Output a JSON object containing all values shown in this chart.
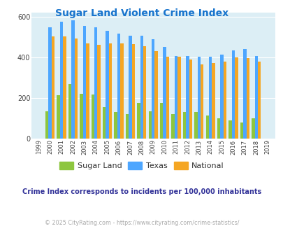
{
  "title": "Sugar Land Violent Crime Index",
  "title_color": "#1874cd",
  "subtitle": "Crime Index corresponds to incidents per 100,000 inhabitants",
  "subtitle_color": "#333399",
  "footer": "© 2025 CityRating.com - https://www.cityrating.com/crime-statistics/",
  "footer_color": "#aaaaaa",
  "years": [
    1999,
    2000,
    2001,
    2002,
    2003,
    2004,
    2005,
    2006,
    2007,
    2008,
    2009,
    2010,
    2011,
    2012,
    2013,
    2014,
    2015,
    2016,
    2017,
    2018,
    2019
  ],
  "sugar_land": [
    0,
    135,
    215,
    270,
    220,
    218,
    155,
    130,
    120,
    175,
    135,
    175,
    120,
    130,
    130,
    115,
    100,
    90,
    80,
    100,
    0
  ],
  "texas": [
    0,
    548,
    575,
    583,
    555,
    548,
    530,
    518,
    508,
    508,
    490,
    453,
    408,
    408,
    402,
    402,
    412,
    435,
    442,
    408,
    0
  ],
  "national": [
    0,
    502,
    502,
    494,
    470,
    463,
    468,
    470,
    464,
    455,
    430,
    404,
    404,
    390,
    365,
    372,
    380,
    400,
    396,
    380,
    0
  ],
  "sugar_land_color": "#8dc63f",
  "texas_color": "#4da6ff",
  "national_color": "#f5a623",
  "bg_color": "#dceef5",
  "ylim": [
    0,
    620
  ],
  "yticks": [
    0,
    200,
    400,
    600
  ],
  "bar_width": 0.27,
  "legend_labels": [
    "Sugar Land",
    "Texas",
    "National"
  ]
}
